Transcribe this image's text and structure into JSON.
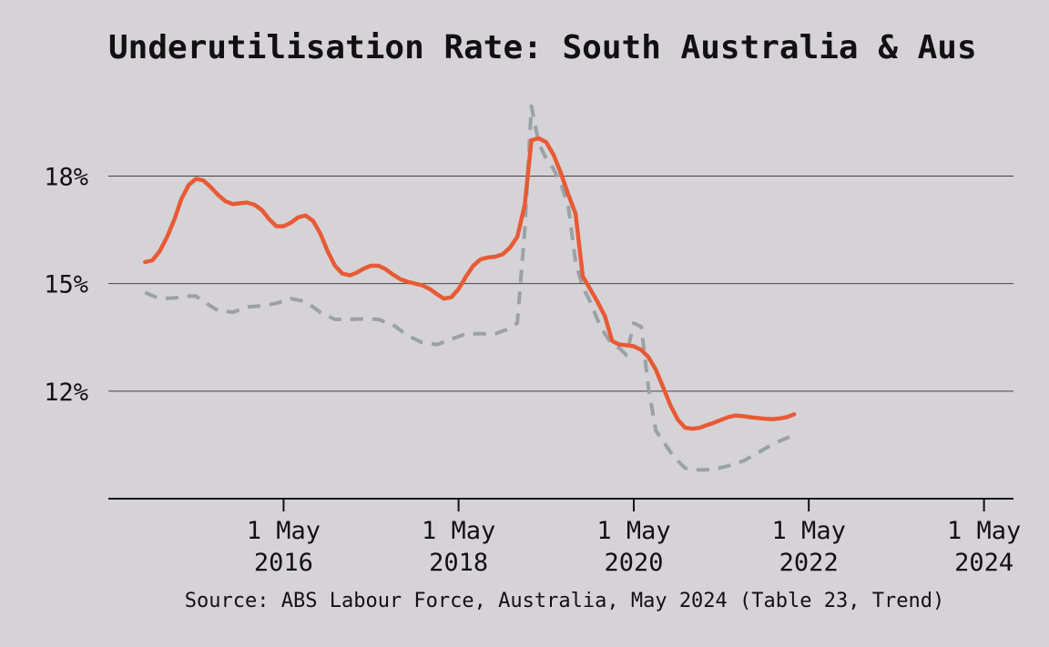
{
  "chart_data": {
    "type": "line",
    "title": "Underutilisation Rate: South Australia & Aus",
    "source": "Source: ABS Labour Force, Australia, May 2024 (Table 23, Trend)",
    "xlabel": "",
    "ylabel": "",
    "y_ticks": [
      {
        "value": 18,
        "label": "18%"
      },
      {
        "value": 15,
        "label": "15%"
      },
      {
        "value": 12,
        "label": "12%"
      }
    ],
    "x_ticks": [
      {
        "date": "2016-05-01",
        "line1": "1 May",
        "line2": "2016"
      },
      {
        "date": "2018-05-01",
        "line1": "1 May",
        "line2": "2018"
      },
      {
        "date": "2020-05-01",
        "line1": "1 May",
        "line2": "2020"
      },
      {
        "date": "2022-05-01",
        "line1": "1 May",
        "line2": "2022"
      },
      {
        "date": "2024-05-01",
        "line1": "1 May",
        "line2": "2024"
      }
    ],
    "xlim": [
      "2014-05-01",
      "2024-09-01"
    ],
    "ylim": [
      9.0,
      20.5
    ],
    "grid": "horizontal",
    "series": [
      {
        "color": "#e85a35",
        "dash": "solid",
        "points": [
          [
            "2014-10-01",
            15.6
          ],
          [
            "2014-11-01",
            15.65
          ],
          [
            "2014-12-01",
            15.9
          ],
          [
            "2015-01-01",
            16.3
          ],
          [
            "2015-02-01",
            16.8
          ],
          [
            "2015-03-01",
            17.35
          ],
          [
            "2015-04-01",
            17.75
          ],
          [
            "2015-05-01",
            17.92
          ],
          [
            "2015-06-01",
            17.88
          ],
          [
            "2015-07-01",
            17.7
          ],
          [
            "2015-08-01",
            17.48
          ],
          [
            "2015-09-01",
            17.3
          ],
          [
            "2015-10-01",
            17.22
          ],
          [
            "2015-11-01",
            17.24
          ],
          [
            "2015-12-01",
            17.26
          ],
          [
            "2016-01-01",
            17.2
          ],
          [
            "2016-02-01",
            17.05
          ],
          [
            "2016-03-01",
            16.8
          ],
          [
            "2016-04-01",
            16.6
          ],
          [
            "2016-05-01",
            16.6
          ],
          [
            "2016-06-01",
            16.7
          ],
          [
            "2016-07-01",
            16.85
          ],
          [
            "2016-08-01",
            16.9
          ],
          [
            "2016-09-01",
            16.75
          ],
          [
            "2016-10-01",
            16.4
          ],
          [
            "2016-11-01",
            15.9
          ],
          [
            "2016-12-01",
            15.5
          ],
          [
            "2017-01-01",
            15.28
          ],
          [
            "2017-02-01",
            15.23
          ],
          [
            "2017-03-01",
            15.3
          ],
          [
            "2017-04-01",
            15.42
          ],
          [
            "2017-05-01",
            15.5
          ],
          [
            "2017-06-01",
            15.5
          ],
          [
            "2017-07-01",
            15.4
          ],
          [
            "2017-08-01",
            15.25
          ],
          [
            "2017-09-01",
            15.12
          ],
          [
            "2017-10-01",
            15.05
          ],
          [
            "2017-11-01",
            15.0
          ],
          [
            "2017-12-01",
            14.95
          ],
          [
            "2018-01-01",
            14.85
          ],
          [
            "2018-02-01",
            14.7
          ],
          [
            "2018-03-01",
            14.58
          ],
          [
            "2018-04-01",
            14.62
          ],
          [
            "2018-05-01",
            14.85
          ],
          [
            "2018-06-01",
            15.2
          ],
          [
            "2018-07-01",
            15.5
          ],
          [
            "2018-08-01",
            15.68
          ],
          [
            "2018-09-01",
            15.73
          ],
          [
            "2018-10-01",
            15.75
          ],
          [
            "2018-11-01",
            15.82
          ],
          [
            "2018-12-01",
            16.0
          ],
          [
            "2019-01-01",
            16.3
          ],
          [
            "2019-02-01",
            17.2
          ],
          [
            "2019-03-01",
            19.0
          ],
          [
            "2019-04-01",
            19.05
          ],
          [
            "2019-05-01",
            18.95
          ],
          [
            "2019-06-01",
            18.6
          ],
          [
            "2019-07-01",
            18.1
          ],
          [
            "2019-08-01",
            17.5
          ],
          [
            "2019-09-01",
            16.95
          ],
          [
            "2019-10-01",
            15.2
          ],
          [
            "2019-11-01",
            14.85
          ],
          [
            "2019-12-01",
            14.5
          ],
          [
            "2020-01-01",
            14.1
          ],
          [
            "2020-02-01",
            13.4
          ],
          [
            "2020-03-01",
            13.3
          ],
          [
            "2020-04-01",
            13.28
          ],
          [
            "2020-05-01",
            13.25
          ],
          [
            "2020-06-01",
            13.15
          ],
          [
            "2020-07-01",
            12.95
          ],
          [
            "2020-08-01",
            12.6
          ],
          [
            "2020-09-01",
            12.1
          ],
          [
            "2020-10-01",
            11.6
          ],
          [
            "2020-11-01",
            11.2
          ],
          [
            "2020-12-01",
            10.98
          ],
          [
            "2021-01-01",
            10.95
          ],
          [
            "2021-02-01",
            10.98
          ],
          [
            "2021-03-01",
            11.05
          ],
          [
            "2021-04-01",
            11.12
          ],
          [
            "2021-05-01",
            11.2
          ],
          [
            "2021-06-01",
            11.28
          ],
          [
            "2021-07-01",
            11.32
          ],
          [
            "2021-08-01",
            11.3
          ],
          [
            "2021-09-01",
            11.27
          ],
          [
            "2021-10-01",
            11.25
          ],
          [
            "2021-11-01",
            11.23
          ],
          [
            "2021-12-01",
            11.22
          ],
          [
            "2022-01-01",
            11.24
          ],
          [
            "2022-02-01",
            11.28
          ],
          [
            "2022-03-01",
            11.35
          ]
        ]
      },
      {
        "color": "#9aa2a4",
        "dash": "dashed",
        "points": [
          [
            "2014-10-01",
            14.75
          ],
          [
            "2014-12-01",
            14.58
          ],
          [
            "2015-02-01",
            14.6
          ],
          [
            "2015-04-01",
            14.65
          ],
          [
            "2015-05-01",
            14.65
          ],
          [
            "2015-06-01",
            14.5
          ],
          [
            "2015-08-01",
            14.25
          ],
          [
            "2015-10-01",
            14.2
          ],
          [
            "2015-12-01",
            14.35
          ],
          [
            "2016-02-01",
            14.38
          ],
          [
            "2016-04-01",
            14.45
          ],
          [
            "2016-06-01",
            14.58
          ],
          [
            "2016-08-01",
            14.5
          ],
          [
            "2016-10-01",
            14.2
          ],
          [
            "2016-12-01",
            14.0
          ],
          [
            "2017-02-01",
            14.0
          ],
          [
            "2017-04-01",
            14.02
          ],
          [
            "2017-06-01",
            14.0
          ],
          [
            "2017-08-01",
            13.85
          ],
          [
            "2017-10-01",
            13.55
          ],
          [
            "2017-12-01",
            13.35
          ],
          [
            "2018-02-01",
            13.3
          ],
          [
            "2018-04-01",
            13.45
          ],
          [
            "2018-06-01",
            13.6
          ],
          [
            "2018-08-01",
            13.6
          ],
          [
            "2018-10-01",
            13.6
          ],
          [
            "2018-12-01",
            13.75
          ],
          [
            "2019-01-01",
            13.9
          ],
          [
            "2019-02-01",
            16.5
          ],
          [
            "2019-03-01",
            19.95
          ],
          [
            "2019-04-01",
            18.9
          ],
          [
            "2019-05-01",
            18.5
          ],
          [
            "2019-06-01",
            18.2
          ],
          [
            "2019-07-01",
            17.8
          ],
          [
            "2019-08-01",
            17.2
          ],
          [
            "2019-09-01",
            15.6
          ],
          [
            "2019-10-01",
            14.9
          ],
          [
            "2019-11-01",
            14.5
          ],
          [
            "2019-12-01",
            14.0
          ],
          [
            "2020-01-01",
            13.6
          ],
          [
            "2020-02-01",
            13.3
          ],
          [
            "2020-03-01",
            13.2
          ],
          [
            "2020-04-01",
            13.0
          ],
          [
            "2020-05-01",
            13.9
          ],
          [
            "2020-06-01",
            13.8
          ],
          [
            "2020-07-01",
            12.1
          ],
          [
            "2020-08-01",
            10.9
          ],
          [
            "2020-09-01",
            10.6
          ],
          [
            "2020-10-01",
            10.3
          ],
          [
            "2020-11-01",
            10.05
          ],
          [
            "2020-12-01",
            9.85
          ],
          [
            "2021-02-01",
            9.8
          ],
          [
            "2021-04-01",
            9.82
          ],
          [
            "2021-06-01",
            9.92
          ],
          [
            "2021-08-01",
            10.05
          ],
          [
            "2021-10-01",
            10.28
          ],
          [
            "2021-12-01",
            10.52
          ],
          [
            "2022-02-01",
            10.7
          ],
          [
            "2022-03-01",
            10.75
          ]
        ]
      }
    ]
  }
}
